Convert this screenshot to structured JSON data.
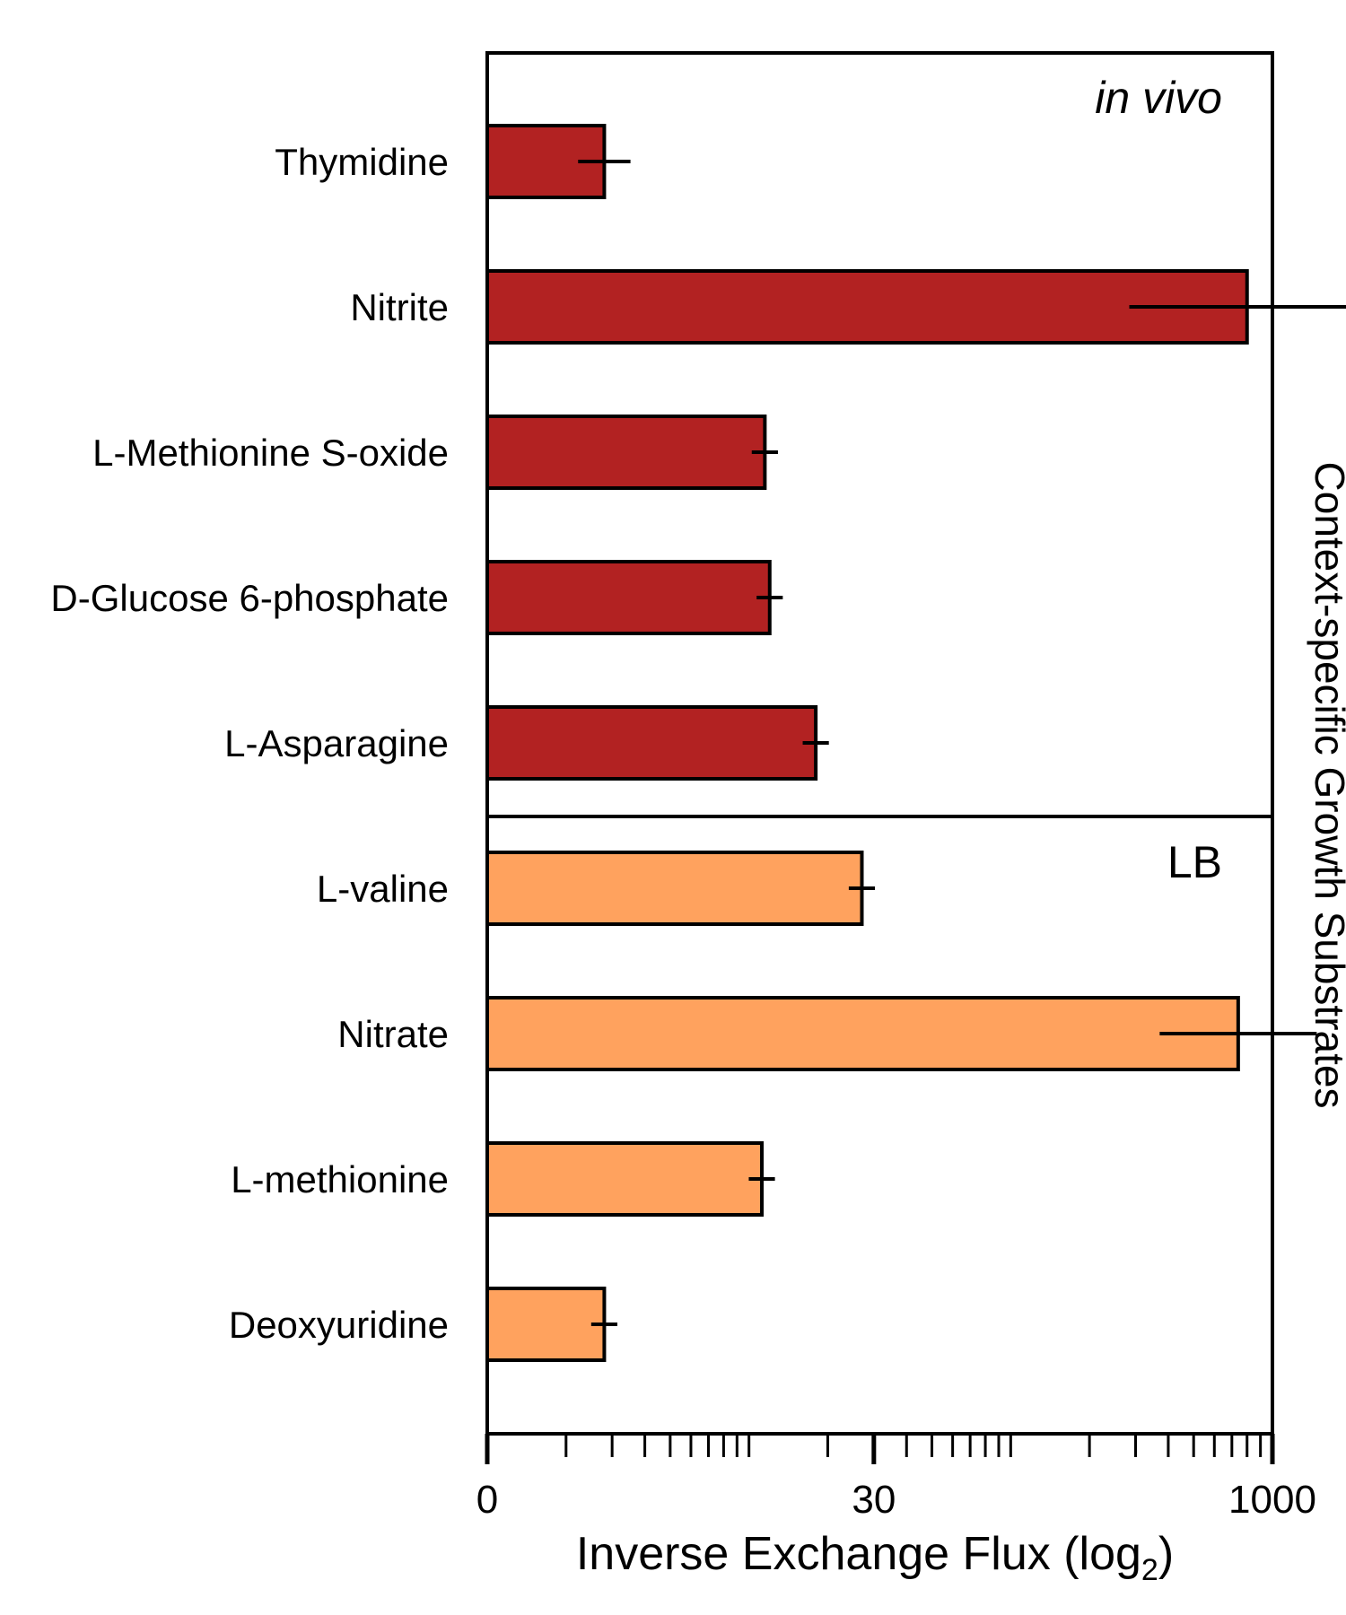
{
  "chart_data": {
    "type": "bar",
    "orientation": "horizontal",
    "xlabel": "Inverse Exchange Flux (log",
    "xlabel_sub": "2",
    "xlabel_close": ")",
    "side_label": "Context-specific Growth Substrates",
    "x_scale": "log",
    "x_tick_labels": [
      "0",
      "30",
      "1000"
    ],
    "xlim": [
      1,
      1000
    ],
    "panels": [
      {
        "label": "in vivo",
        "label_style": "italic",
        "color": "#b22222",
        "categories": [
          "Thymidine",
          "Nitrite",
          "L-Methionine S-oxide",
          "D-Glucose 6-phosphate",
          "L-Asparagine"
        ],
        "values": [
          2.8,
          800,
          11.5,
          12,
          18
        ],
        "errors": [
          0.1,
          0.45,
          0.05,
          0.05,
          0.05
        ]
      },
      {
        "label": "LB",
        "label_style": "normal",
        "color": "#ffa25e",
        "categories": [
          "L-valine",
          "Nitrate",
          "L-methionine",
          "Deoxyuridine"
        ],
        "values": [
          27,
          740,
          11.2,
          2.8
        ],
        "errors": [
          0.05,
          0.3,
          0.05,
          0.05
        ]
      }
    ]
  }
}
